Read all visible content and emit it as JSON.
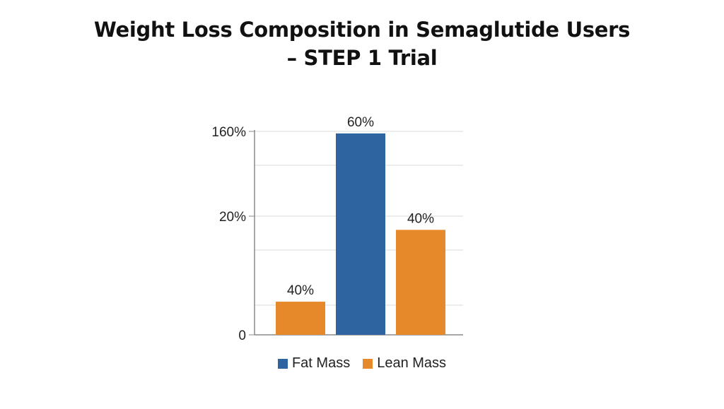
{
  "chart_data": {
    "type": "bar",
    "title_lines": [
      "Weight Loss Composition in Semaglutide Users",
      "– STEP 1 Trial"
    ],
    "xlabel": "",
    "ylabel": "",
    "y_ticks": [
      "0",
      "20%",
      "160%"
    ],
    "grid": true,
    "legend_position": "bottom",
    "series": [
      {
        "name": "Fat Mass",
        "color": "#2E64A0"
      },
      {
        "name": "Lean Mass",
        "color": "#E6892B"
      }
    ],
    "bars": [
      {
        "series": "Lean Mass",
        "value_label": "40%",
        "value_fraction": 0.163
      },
      {
        "series": "Fat Mass",
        "value_label": "60%",
        "value_fraction": 0.99
      },
      {
        "series": "Lean Mass",
        "value_label": "40%",
        "value_fraction": 0.516
      }
    ]
  }
}
